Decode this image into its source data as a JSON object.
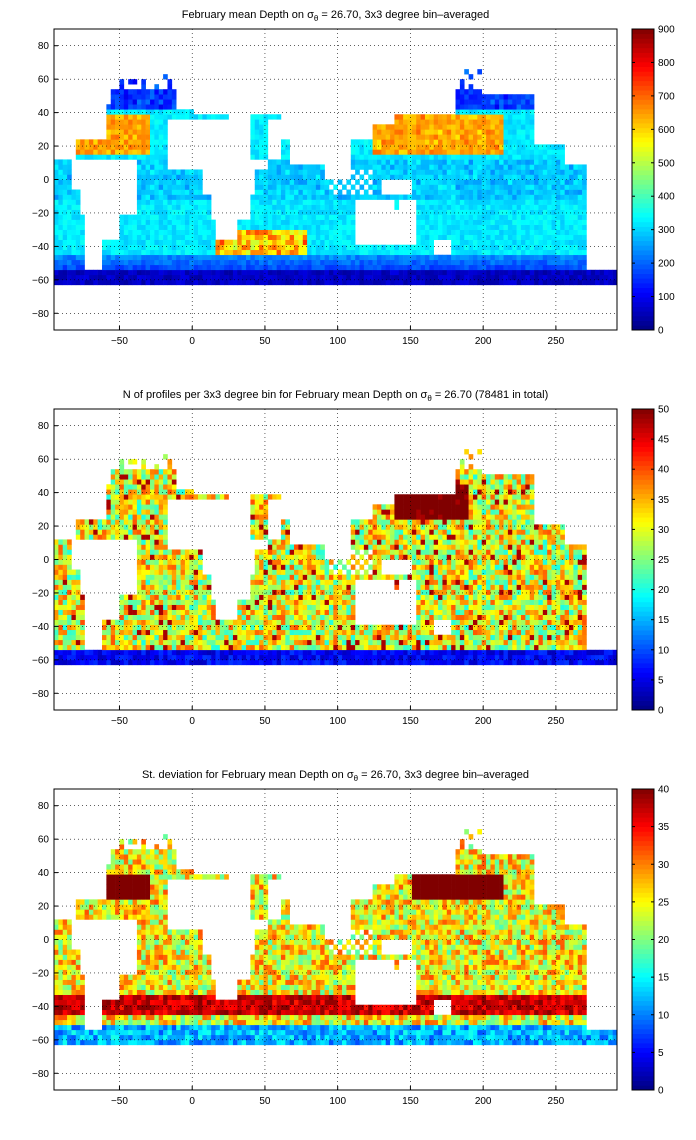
{
  "figure": {
    "colors": {
      "background": "#ffffff",
      "land": "#ffffff",
      "no_data": "#ffffff",
      "coastline": "#000000",
      "grid": "#000000",
      "colormap": "jet"
    }
  },
  "chart_data": [
    {
      "type": "heatmap",
      "title_prefix": "February mean Depth on ",
      "title_symbol": "σ",
      "title_subscript": "θ",
      "title_suffix": " = 26.70, 3x3 degree bin–averaged",
      "xlabel": "",
      "ylabel": "",
      "xlim": [
        -95,
        292
      ],
      "ylim": [
        -90,
        90
      ],
      "xticks": [
        -50,
        0,
        50,
        100,
        150,
        200,
        250
      ],
      "yticks": [
        -80,
        -60,
        -40,
        -20,
        0,
        20,
        40,
        60,
        80
      ],
      "grid": true,
      "grid_style": "dotted",
      "bin_size_deg": 3,
      "colorbar": {
        "min": 0,
        "max": 900,
        "ticks": [
          0,
          100,
          200,
          300,
          400,
          500,
          600,
          700,
          800,
          900
        ],
        "colormap": "jet",
        "placement": "right"
      }
    },
    {
      "type": "heatmap",
      "title_prefix": "N of profiles per 3x3 degree bin for February mean Depth on ",
      "title_symbol": "σ",
      "title_subscript": "θ",
      "title_suffix": " = 26.70 (78481 in total)",
      "xlabel": "",
      "ylabel": "",
      "xlim": [
        -95,
        292
      ],
      "ylim": [
        -90,
        90
      ],
      "xticks": [
        -50,
        0,
        50,
        100,
        150,
        200,
        250
      ],
      "yticks": [
        -80,
        -60,
        -40,
        -20,
        0,
        20,
        40,
        60,
        80
      ],
      "grid": true,
      "grid_style": "dotted",
      "bin_size_deg": 3,
      "colorbar": {
        "min": 0,
        "max": 50,
        "ticks": [
          0,
          5,
          10,
          15,
          20,
          25,
          30,
          35,
          40,
          45,
          50
        ],
        "colormap": "jet",
        "placement": "right"
      }
    },
    {
      "type": "heatmap",
      "title_prefix": "St. deviation for February mean Depth on ",
      "title_symbol": "σ",
      "title_subscript": "θ",
      "title_suffix": " = 26.70, 3x3 degree bin–averaged",
      "xlabel": "",
      "ylabel": "",
      "xlim": [
        -95,
        292
      ],
      "ylim": [
        -90,
        90
      ],
      "xticks": [
        -50,
        0,
        50,
        100,
        150,
        200,
        250
      ],
      "yticks": [
        -80,
        -60,
        -40,
        -20,
        0,
        20,
        40,
        60,
        80
      ],
      "grid": true,
      "grid_style": "dotted",
      "bin_size_deg": 3,
      "colorbar": {
        "min": 0,
        "max": 40,
        "ticks": [
          0,
          5,
          10,
          15,
          20,
          25,
          30,
          35,
          40
        ],
        "colormap": "jet",
        "placement": "right"
      }
    }
  ]
}
